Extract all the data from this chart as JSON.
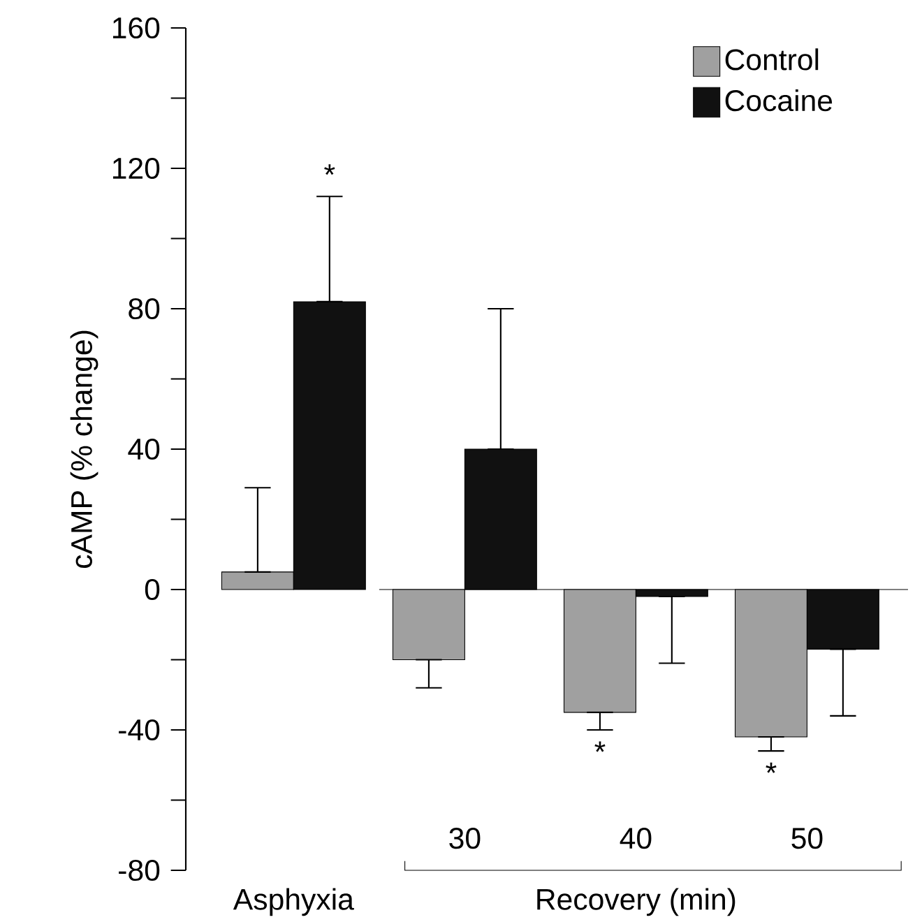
{
  "chart_data": {
    "type": "bar",
    "ylabel": "cAMP (% change)",
    "categories": [
      "Asphyxia",
      "30",
      "40",
      "50"
    ],
    "series": [
      {
        "name": "Control",
        "color": "#a0a0a0",
        "values": [
          5,
          -20,
          -35,
          -42
        ],
        "errors": [
          [
            5,
            29
          ],
          [
            -28,
            -20
          ],
          [
            -40,
            -35
          ],
          [
            -46,
            -42
          ]
        ]
      },
      {
        "name": "Cocaine",
        "color": "#111111",
        "values": [
          82,
          40,
          -2,
          -17
        ],
        "errors": [
          [
            82,
            112
          ],
          [
            40,
            80
          ],
          [
            -21,
            -2
          ],
          [
            -36,
            -17
          ]
        ]
      }
    ],
    "ylim": [
      -80,
      160
    ],
    "yticks": [
      -80,
      -40,
      0,
      40,
      80,
      120,
      160
    ],
    "legend": "top right",
    "annotations": [
      "*",
      "*",
      "*",
      "Recovery (min)"
    ]
  }
}
